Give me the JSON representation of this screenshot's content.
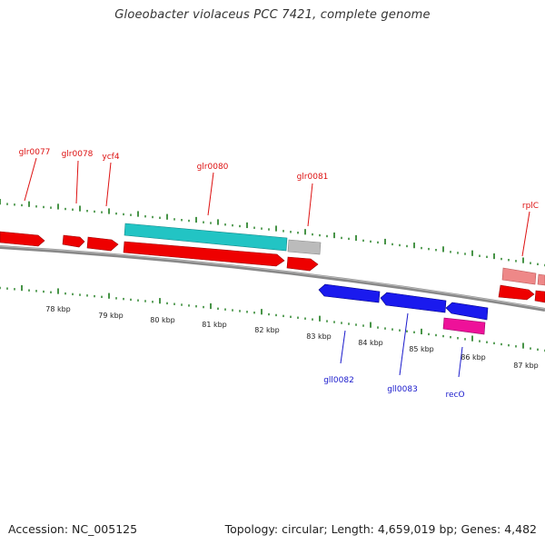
{
  "title": "Gloeobacter violaceus PCC 7421, complete genome",
  "footer": {
    "accession": "Accession: NC_005125",
    "summary": "Topology: circular; Length: 4,659,019 bp; Genes: 4,482"
  },
  "colors": {
    "forward_cds": "#ee0000",
    "reverse_cds": "#1a1aee",
    "rna": "#22c4c4",
    "other": "#bbbbbb",
    "recombination": "#ee1199",
    "pseudo": "#ee8888",
    "ticks": "#1a7a1a",
    "backbone": "#888888"
  },
  "kbp_labels": [
    "78 kbp",
    "79 kbp",
    "80 kbp",
    "81 kbp",
    "82 kbp",
    "83 kbp",
    "84 kbp",
    "85 kbp",
    "86 kbp",
    "87 kbp"
  ],
  "forward_genes": [
    {
      "label": "glr0077",
      "color": "#dd1111"
    },
    {
      "label": "glr0078",
      "color": "#dd1111"
    },
    {
      "label": "ycf4",
      "color": "#dd1111"
    },
    {
      "label": "glr0080",
      "color": "#dd1111"
    },
    {
      "label": "glr0081",
      "color": "#dd1111"
    },
    {
      "label": "rplC",
      "color": "#dd1111"
    }
  ],
  "reverse_genes": [
    {
      "label": "gll0082",
      "color": "#1a1acc"
    },
    {
      "label": "gll0083",
      "color": "#1a1acc"
    },
    {
      "label": "recO",
      "color": "#1a1acc"
    }
  ]
}
